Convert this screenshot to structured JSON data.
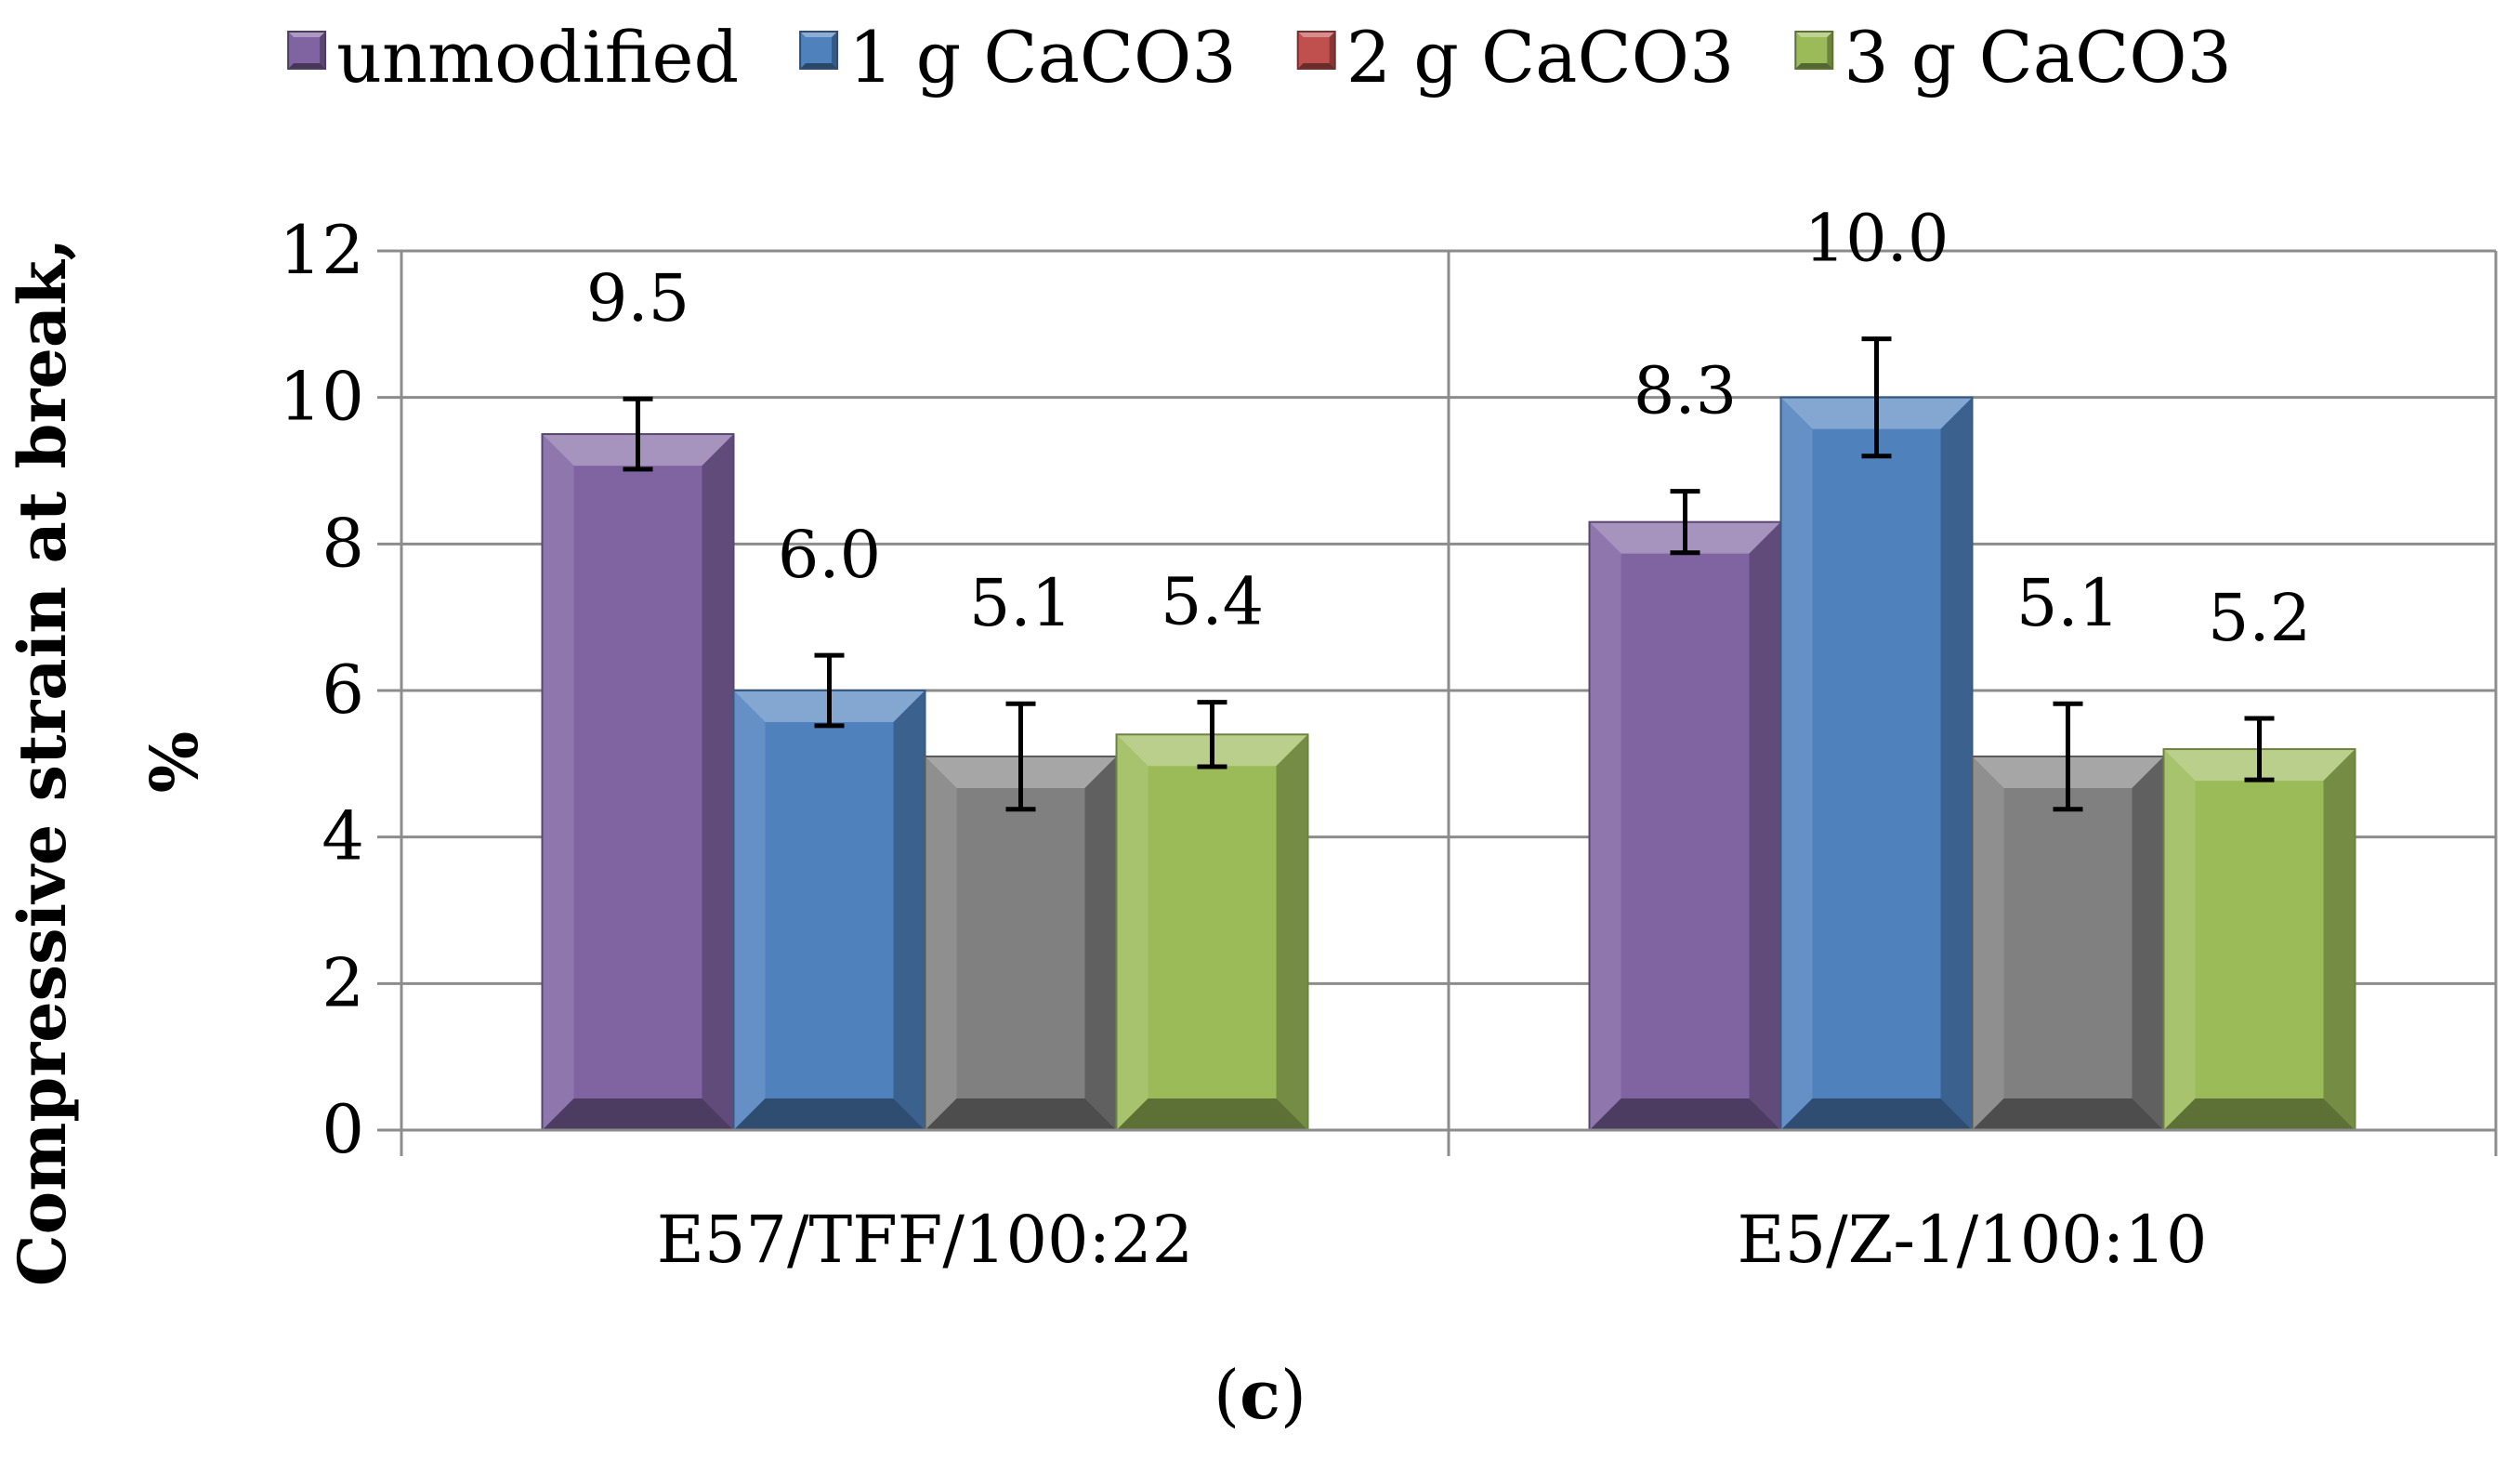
{
  "chart_data": {
    "type": "bar",
    "title": "",
    "categories": [
      "E57/TFF/100:22",
      "E5/Z-1/100:10"
    ],
    "series": [
      {
        "name": "unmodified",
        "color": "#8064a2",
        "values": [
          9.5,
          8.3
        ],
        "errors": [
          0.48,
          0.42
        ]
      },
      {
        "name": "1 g CaCO3",
        "color": "#4f81bd",
        "values": [
          6.0,
          10.0
        ],
        "errors": [
          0.48,
          0.8
        ]
      },
      {
        "name": "2 g CaCO3",
        "color": "#808080",
        "legend_color": "#c0504d",
        "values": [
          5.1,
          5.1
        ],
        "errors": [
          0.72,
          0.72
        ]
      },
      {
        "name": "3 g CaCO3",
        "color": "#9bbb59",
        "values": [
          5.4,
          5.2
        ],
        "errors": [
          0.44,
          0.42
        ]
      }
    ],
    "data_labels": [
      [
        "9.5",
        "8.3"
      ],
      [
        "6.0",
        "10.0"
      ],
      [
        "5.1",
        "5.1"
      ],
      [
        "5.4",
        "5.2"
      ]
    ],
    "xlabel": "",
    "ylabel_line1": "Compressive strain at break,",
    "ylabel_line2": "%",
    "ylim": [
      0,
      12
    ],
    "yticks": [
      0,
      2,
      4,
      6,
      8,
      10,
      12
    ],
    "grid": true,
    "legend_position": "top"
  },
  "caption": {
    "open": "(",
    "letter": "c",
    "close": ")"
  }
}
